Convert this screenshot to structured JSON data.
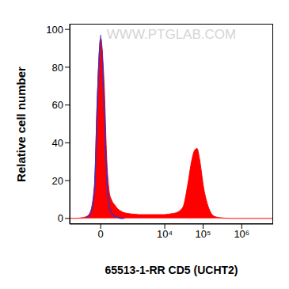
{
  "chart_data": {
    "type": "area",
    "x_label": "65513-1-RR CD5 (UCHT2)",
    "y_label": "Relative cell number",
    "annotations": [
      "WWW.PTGLAB.COM"
    ],
    "x": [
      -1200,
      -800,
      -500,
      -300,
      -200,
      -100,
      -50,
      0,
      50,
      100,
      150,
      200,
      300,
      400,
      500,
      700,
      1000,
      1500,
      2000,
      3000,
      4000,
      5000,
      7000,
      10000,
      15000,
      20000,
      30000,
      40000,
      50000,
      60000,
      70000,
      80000,
      90000,
      100000,
      120000,
      150000,
      200000,
      300000,
      500000,
      1000000,
      6500000
    ],
    "series": [
      {
        "type": "area",
        "color": "#ff0000",
        "values": [
          0,
          0,
          0.3,
          1,
          3,
          18,
          65,
          95,
          72,
          30,
          14,
          10,
          7,
          5,
          4,
          3,
          2.5,
          2.2,
          2,
          2,
          2,
          2,
          2,
          2,
          2.5,
          3,
          6,
          18,
          30,
          36,
          37,
          32,
          25,
          18,
          10,
          4,
          1,
          0.3,
          0,
          0,
          0
        ]
      },
      {
        "type": "line",
        "color": "#3333cc",
        "values": [
          null,
          null,
          null,
          0.5,
          2,
          15,
          60,
          97,
          60,
          20,
          6,
          3,
          1,
          0.5,
          0,
          0,
          null,
          null,
          null,
          null,
          null,
          null,
          null,
          null,
          null,
          null,
          null,
          null,
          null,
          null,
          null,
          null,
          null,
          null,
          null,
          null,
          null,
          null,
          null,
          null,
          null
        ]
      }
    ],
    "xlim": [
      -1200,
      6500000
    ],
    "xticks": [
      0,
      {
        "value": 10000,
        "label": "10⁴"
      },
      {
        "value": 100000,
        "label": "10⁵"
      },
      {
        "value": 1000000,
        "label": "10⁶"
      }
    ],
    "ylim": [
      -3,
      103
    ],
    "yticks": [
      0,
      20,
      40,
      60,
      80,
      100
    ],
    "log": "x",
    "grid": false
  }
}
